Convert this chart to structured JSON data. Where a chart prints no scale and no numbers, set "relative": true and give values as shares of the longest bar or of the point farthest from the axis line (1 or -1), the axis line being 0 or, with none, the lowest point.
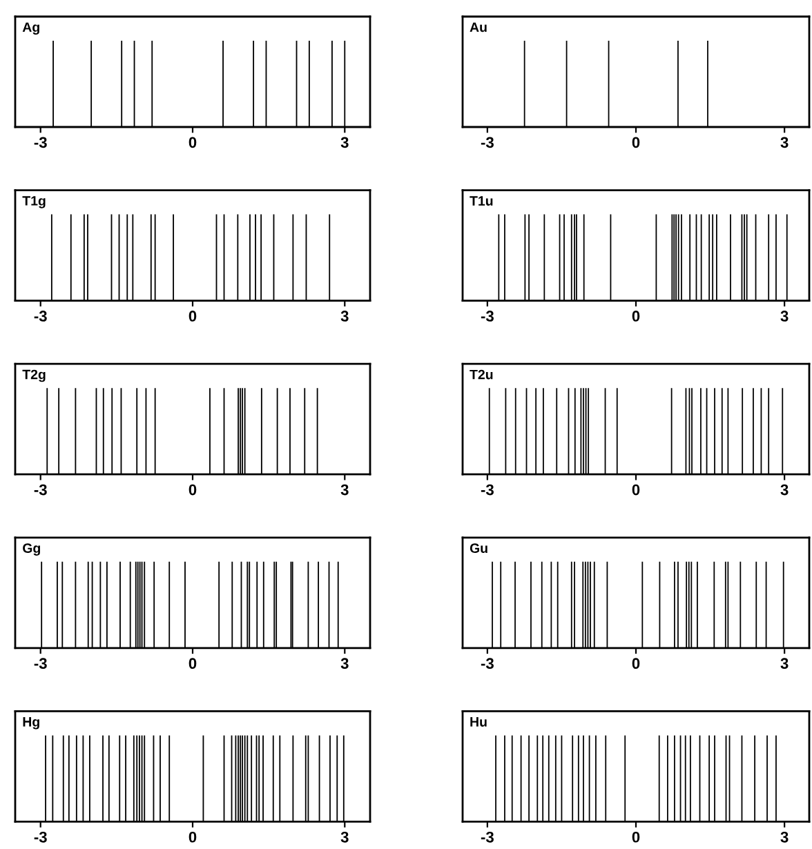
{
  "chart_data": [
    {
      "type": "bar",
      "title": "Ag",
      "relative": true,
      "color": "#000000",
      "xlim": [
        -3.5,
        3.5
      ],
      "xticks": [
        -3,
        0,
        3
      ],
      "grid": false,
      "legend": false,
      "x": [
        -2.75,
        -2.0,
        -1.4,
        -1.15,
        -0.8,
        0.6,
        1.2,
        1.45,
        2.05,
        2.3,
        2.75,
        3.0
      ],
      "values": [
        1,
        1,
        1,
        1,
        1,
        1,
        1,
        1,
        1,
        1,
        1,
        1
      ]
    },
    {
      "type": "bar",
      "title": "Au",
      "relative": true,
      "color": "#000000",
      "xlim": [
        -3.5,
        3.5
      ],
      "xticks": [
        -3,
        0,
        3
      ],
      "grid": false,
      "legend": false,
      "x": [
        -2.25,
        -1.4,
        -0.55,
        0.85,
        1.45
      ],
      "values": [
        1,
        1,
        1,
        1,
        1
      ]
    },
    {
      "type": "bar",
      "title": "T1g",
      "relative": true,
      "color": "#000000",
      "xlim": [
        -3.5,
        3.5
      ],
      "xticks": [
        -3,
        0,
        3
      ],
      "grid": false,
      "legend": false,
      "x": [
        -2.78,
        -2.4,
        -2.14,
        -2.07,
        -1.6,
        -1.45,
        -1.29,
        -1.18,
        -0.82,
        -0.74,
        -0.38,
        0.47,
        0.62,
        0.89,
        1.13,
        1.24,
        1.35,
        1.6,
        1.98,
        2.24,
        2.7
      ],
      "values": [
        1,
        1,
        1,
        1,
        1,
        1,
        1,
        1,
        1,
        1,
        1,
        1,
        1,
        1,
        1,
        1,
        1,
        1,
        1,
        1,
        1
      ]
    },
    {
      "type": "bar",
      "title": "T1u",
      "relative": true,
      "color": "#000000",
      "xlim": [
        -3.5,
        3.5
      ],
      "xticks": [
        -3,
        0,
        3
      ],
      "grid": false,
      "legend": false,
      "x": [
        -2.77,
        -2.65,
        -2.24,
        -2.16,
        -1.85,
        -1.54,
        -1.45,
        -1.3,
        -1.24,
        -1.2,
        -1.05,
        -0.51,
        0.41,
        0.73,
        0.77,
        0.81,
        0.86,
        0.92,
        1.09,
        1.22,
        1.32,
        1.48,
        1.55,
        1.63,
        1.91,
        2.14,
        2.19,
        2.24,
        2.42,
        2.68,
        2.83,
        3.05
      ],
      "values": [
        1,
        1,
        1,
        1,
        1,
        1,
        1,
        1,
        1,
        1,
        1,
        1,
        1,
        1,
        1,
        1,
        1,
        1,
        1,
        1,
        1,
        1,
        1,
        1,
        1,
        1,
        1,
        1,
        1,
        1,
        1,
        1
      ]
    },
    {
      "type": "bar",
      "title": "T2g",
      "relative": true,
      "color": "#000000",
      "xlim": [
        -3.5,
        3.5
      ],
      "xticks": [
        -3,
        0,
        3
      ],
      "grid": false,
      "legend": false,
      "x": [
        -2.87,
        -2.64,
        -2.31,
        -1.9,
        -1.76,
        -1.59,
        -1.41,
        -1.1,
        -0.92,
        -0.74,
        0.34,
        0.62,
        0.9,
        0.94,
        0.98,
        1.03,
        1.36,
        1.67,
        1.92,
        2.21,
        2.46
      ],
      "values": [
        1,
        1,
        1,
        1,
        1,
        1,
        1,
        1,
        1,
        1,
        1,
        1,
        1,
        1,
        1,
        1,
        1,
        1,
        1,
        1,
        1
      ]
    },
    {
      "type": "bar",
      "title": "T2u",
      "relative": true,
      "color": "#000000",
      "xlim": [
        -3.5,
        3.5
      ],
      "xticks": [
        -3,
        0,
        3
      ],
      "grid": false,
      "legend": false,
      "x": [
        -2.96,
        -2.63,
        -2.43,
        -2.21,
        -2.02,
        -1.87,
        -1.6,
        -1.36,
        -1.23,
        -1.11,
        -1.06,
        -1.01,
        -0.96,
        -0.62,
        -0.38,
        0.72,
        1.01,
        1.08,
        1.13,
        1.31,
        1.43,
        1.59,
        1.74,
        1.86,
        2.15,
        2.37,
        2.53,
        2.68,
        2.96
      ],
      "values": [
        1,
        1,
        1,
        1,
        1,
        1,
        1,
        1,
        1,
        1,
        1,
        1,
        1,
        1,
        1,
        1,
        1,
        1,
        1,
        1,
        1,
        1,
        1,
        1,
        1,
        1,
        1,
        1,
        1
      ]
    },
    {
      "type": "bar",
      "title": "Gg",
      "relative": true,
      "color": "#000000",
      "xlim": [
        -3.5,
        3.5
      ],
      "xticks": [
        -3,
        0,
        3
      ],
      "grid": false,
      "legend": false,
      "x": [
        -2.98,
        -2.67,
        -2.57,
        -2.31,
        -2.06,
        -1.98,
        -1.82,
        -1.69,
        -1.43,
        -1.23,
        -1.12,
        -1.08,
        -1.04,
        -1.0,
        -0.95,
        -0.76,
        -0.46,
        -0.15,
        0.52,
        0.78,
        0.96,
        1.08,
        1.12,
        1.27,
        1.4,
        1.61,
        1.65,
        1.94,
        1.97,
        2.28,
        2.48,
        2.69,
        2.87
      ],
      "values": [
        1,
        1,
        1,
        1,
        1,
        1,
        1,
        1,
        1,
        1,
        1,
        1,
        1,
        1,
        1,
        1,
        1,
        1,
        1,
        1,
        1,
        1,
        1,
        1,
        1,
        1,
        1,
        1,
        1,
        1,
        1,
        1,
        1
      ]
    },
    {
      "type": "bar",
      "title": "Gu",
      "relative": true,
      "color": "#000000",
      "xlim": [
        -3.5,
        3.5
      ],
      "xticks": [
        -3,
        0,
        3
      ],
      "grid": false,
      "legend": false,
      "x": [
        -2.9,
        -2.73,
        -2.44,
        -2.12,
        -1.9,
        -1.71,
        -1.58,
        -1.3,
        -1.24,
        -1.07,
        -1.02,
        -0.97,
        -0.92,
        -0.84,
        -0.58,
        0.13,
        0.48,
        0.78,
        0.85,
        1.02,
        1.07,
        1.12,
        1.24,
        1.58,
        1.81,
        1.86,
        2.11,
        2.43,
        2.63,
        2.98
      ],
      "values": [
        1,
        1,
        1,
        1,
        1,
        1,
        1,
        1,
        1,
        1,
        1,
        1,
        1,
        1,
        1,
        1,
        1,
        1,
        1,
        1,
        1,
        1,
        1,
        1,
        1,
        1,
        1,
        1,
        1,
        1
      ]
    },
    {
      "type": "bar",
      "title": "Hg",
      "relative": true,
      "color": "#000000",
      "xlim": [
        -3.5,
        3.5
      ],
      "xticks": [
        -3,
        0,
        3
      ],
      "grid": false,
      "legend": false,
      "x": [
        -2.9,
        -2.76,
        -2.55,
        -2.44,
        -2.29,
        -2.16,
        -2.03,
        -1.77,
        -1.65,
        -1.44,
        -1.32,
        -1.16,
        -1.1,
        -1.05,
        -1.0,
        -0.95,
        -0.77,
        -0.64,
        -0.46,
        0.21,
        0.62,
        0.77,
        0.85,
        0.9,
        0.94,
        0.98,
        1.03,
        1.08,
        1.16,
        1.26,
        1.31,
        1.39,
        1.59,
        1.72,
        1.98,
        2.23,
        2.28,
        2.5,
        2.71,
        2.85,
        2.98
      ],
      "values": [
        1,
        1,
        1,
        1,
        1,
        1,
        1,
        1,
        1,
        1,
        1,
        1,
        1,
        1,
        1,
        1,
        1,
        1,
        1,
        1,
        1,
        1,
        1,
        1,
        1,
        1,
        1,
        1,
        1,
        1,
        1,
        1,
        1,
        1,
        1,
        1,
        1,
        1,
        1,
        1,
        1
      ]
    },
    {
      "type": "bar",
      "title": "Hu",
      "relative": true,
      "color": "#000000",
      "xlim": [
        -3.5,
        3.5
      ],
      "xticks": [
        -3,
        0,
        3
      ],
      "grid": false,
      "legend": false,
      "x": [
        -2.83,
        -2.65,
        -2.5,
        -2.32,
        -2.16,
        -1.99,
        -1.88,
        -1.76,
        -1.62,
        -1.5,
        -1.28,
        -1.16,
        -1.06,
        -0.94,
        -0.81,
        -0.61,
        -0.22,
        0.47,
        0.64,
        0.78,
        0.9,
        1.0,
        1.1,
        1.29,
        1.48,
        1.59,
        1.82,
        1.89,
        2.14,
        2.4,
        2.65,
        2.83
      ],
      "values": [
        1,
        1,
        1,
        1,
        1,
        1,
        1,
        1,
        1,
        1,
        1,
        1,
        1,
        1,
        1,
        1,
        1,
        1,
        1,
        1,
        1,
        1,
        1,
        1,
        1,
        1,
        1,
        1,
        1,
        1,
        1,
        1
      ]
    }
  ]
}
